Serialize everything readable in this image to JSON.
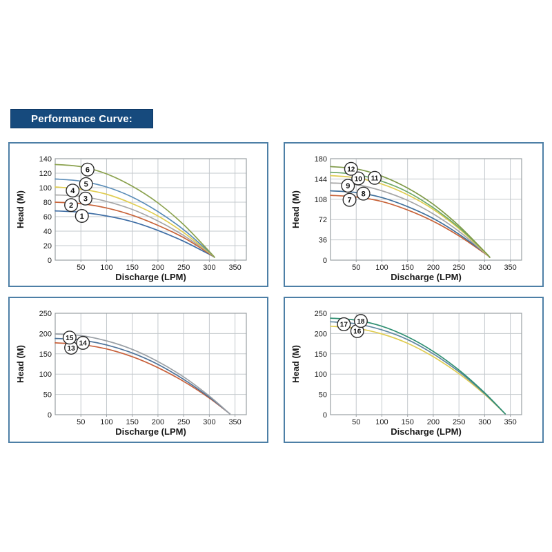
{
  "header": {
    "title": "Performance Curve:"
  },
  "style": {
    "header_bg": "#164a7d",
    "panel_border": "#4d7fa6",
    "grid_color": "#c3c8cc",
    "plot_frame": "#9aa0a4",
    "axis_text": "#1a1a1a",
    "label_circle_stroke": "#2a2a2a"
  },
  "chart_data": [
    {
      "name": "top-left",
      "type": "line",
      "xlabel": "Discharge (LPM)",
      "ylabel": "Head (M)",
      "xlim": [
        0,
        372
      ],
      "ylim": [
        0,
        140
      ],
      "xticks": [
        50,
        100,
        150,
        200,
        250,
        300,
        350
      ],
      "yticks": [
        0,
        20,
        40,
        60,
        80,
        100,
        120,
        140
      ],
      "grid": true,
      "legend": "numbered circles on curves",
      "x": [
        0,
        50,
        100,
        150,
        200,
        250,
        300,
        310
      ],
      "series": [
        {
          "name": "1",
          "color": "#3f6ea5",
          "values": [
            68,
            66,
            61,
            53,
            41,
            26,
            8,
            4
          ]
        },
        {
          "name": "2",
          "color": "#c8643a",
          "values": [
            80,
            78,
            72,
            62,
            48,
            31,
            9,
            4
          ]
        },
        {
          "name": "3",
          "color": "#a6a6a6",
          "values": [
            90,
            88,
            81,
            70,
            54,
            34,
            10,
            4
          ]
        },
        {
          "name": "4",
          "color": "#e0cd52",
          "values": [
            101,
            98,
            91,
            78,
            61,
            38,
            10,
            4
          ]
        },
        {
          "name": "5",
          "color": "#5b8db8",
          "values": [
            112,
            109,
            101,
            87,
            67,
            42,
            11,
            4
          ]
        },
        {
          "name": "6",
          "color": "#8ba24e",
          "values": [
            132,
            129,
            119,
            102,
            79,
            49,
            12,
            4
          ]
        }
      ],
      "curve_labels": [
        {
          "text": "1",
          "x": 52,
          "y": 61
        },
        {
          "text": "2",
          "x": 31,
          "y": 76
        },
        {
          "text": "3",
          "x": 59,
          "y": 85
        },
        {
          "text": "4",
          "x": 34,
          "y": 96
        },
        {
          "text": "5",
          "x": 60,
          "y": 105
        },
        {
          "text": "6",
          "x": 63,
          "y": 125
        }
      ]
    },
    {
      "name": "top-right",
      "type": "line",
      "xlabel": "Discharge (LPM)",
      "ylabel": "Head (M)",
      "xlim": [
        0,
        372
      ],
      "ylim": [
        0,
        180
      ],
      "xticks": [
        50,
        100,
        150,
        200,
        250,
        300,
        350
      ],
      "yticks": [
        0,
        36,
        72,
        108,
        144,
        180
      ],
      "grid": true,
      "legend": "numbered circles on curves",
      "x": [
        0,
        50,
        100,
        150,
        200,
        250,
        300,
        310
      ],
      "series": [
        {
          "name": "7",
          "color": "#c8643a",
          "values": [
            115,
            112,
            104,
            89,
            69,
            43,
            12,
            5
          ]
        },
        {
          "name": "8",
          "color": "#41719c",
          "values": [
            123,
            120,
            111,
            95,
            74,
            46,
            13,
            5
          ]
        },
        {
          "name": "9",
          "color": "#a6a6a6",
          "values": [
            137,
            134,
            123,
            106,
            82,
            51,
            13,
            5
          ]
        },
        {
          "name": "10",
          "color": "#e0cd52",
          "values": [
            150,
            146,
            135,
            116,
            90,
            56,
            14,
            5
          ]
        },
        {
          "name": "11",
          "color": "#6fa96a",
          "values": [
            156,
            152,
            140,
            121,
            93,
            58,
            15,
            5
          ]
        },
        {
          "name": "12",
          "color": "#7f9a48",
          "values": [
            166,
            162,
            149,
            128,
            99,
            61,
            15,
            5
          ]
        }
      ],
      "curve_labels": [
        {
          "text": "7",
          "x": 37,
          "y": 107
        },
        {
          "text": "8",
          "x": 64,
          "y": 118
        },
        {
          "text": "9",
          "x": 34,
          "y": 132
        },
        {
          "text": "10",
          "x": 54,
          "y": 145
        },
        {
          "text": "11",
          "x": 86,
          "y": 146
        },
        {
          "text": "12",
          "x": 40,
          "y": 162
        }
      ]
    },
    {
      "name": "bottom-left",
      "type": "line",
      "xlabel": "Discharge (LPM)",
      "ylabel": "Head (M)",
      "xlim": [
        0,
        372
      ],
      "ylim": [
        0,
        250
      ],
      "xticks": [
        50,
        100,
        150,
        200,
        250,
        300,
        350
      ],
      "yticks": [
        0,
        50,
        100,
        150,
        200,
        250
      ],
      "grid": true,
      "legend": "numbered circles on curves",
      "x": [
        0,
        50,
        100,
        150,
        200,
        250,
        300,
        340
      ],
      "series": [
        {
          "name": "13",
          "color": "#c8603a",
          "values": [
            177,
            173,
            162,
            143,
            116,
            82,
            41,
            2
          ]
        },
        {
          "name": "14",
          "color": "#4e7399",
          "values": [
            188,
            184,
            172,
            152,
            124,
            87,
            43,
            2
          ]
        },
        {
          "name": "15",
          "color": "#9aa0a6",
          "values": [
            199,
            195,
            182,
            161,
            131,
            93,
            46,
            2
          ]
        }
      ],
      "curve_labels": [
        {
          "text": "13",
          "x": 31,
          "y": 165
        },
        {
          "text": "14",
          "x": 54,
          "y": 177
        },
        {
          "text": "15",
          "x": 28,
          "y": 190
        }
      ]
    },
    {
      "name": "bottom-right",
      "type": "line",
      "xlabel": "Discharge (LPM)",
      "ylabel": "Head (M)",
      "xlim": [
        0,
        372
      ],
      "ylim": [
        0,
        250
      ],
      "xticks": [
        50,
        100,
        150,
        200,
        250,
        300,
        350
      ],
      "yticks": [
        0,
        50,
        100,
        150,
        200,
        250
      ],
      "grid": true,
      "legend": "numbered circles on curves",
      "x": [
        0,
        50,
        100,
        150,
        200,
        250,
        300,
        340
      ],
      "series": [
        {
          "name": "16",
          "color": "#e0cd52",
          "values": [
            218,
            213,
            199,
            176,
            143,
            101,
            50,
            2
          ]
        },
        {
          "name": "17",
          "color": "#6088a0",
          "values": [
            229,
            224,
            209,
            185,
            150,
            106,
            52,
            2
          ]
        },
        {
          "name": "18",
          "color": "#2f8f72",
          "values": [
            238,
            233,
            218,
            192,
            156,
            110,
            54,
            2
          ]
        }
      ],
      "curve_labels": [
        {
          "text": "16",
          "x": 52,
          "y": 206
        },
        {
          "text": "17",
          "x": 26,
          "y": 223
        },
        {
          "text": "18",
          "x": 59,
          "y": 231
        }
      ]
    }
  ]
}
